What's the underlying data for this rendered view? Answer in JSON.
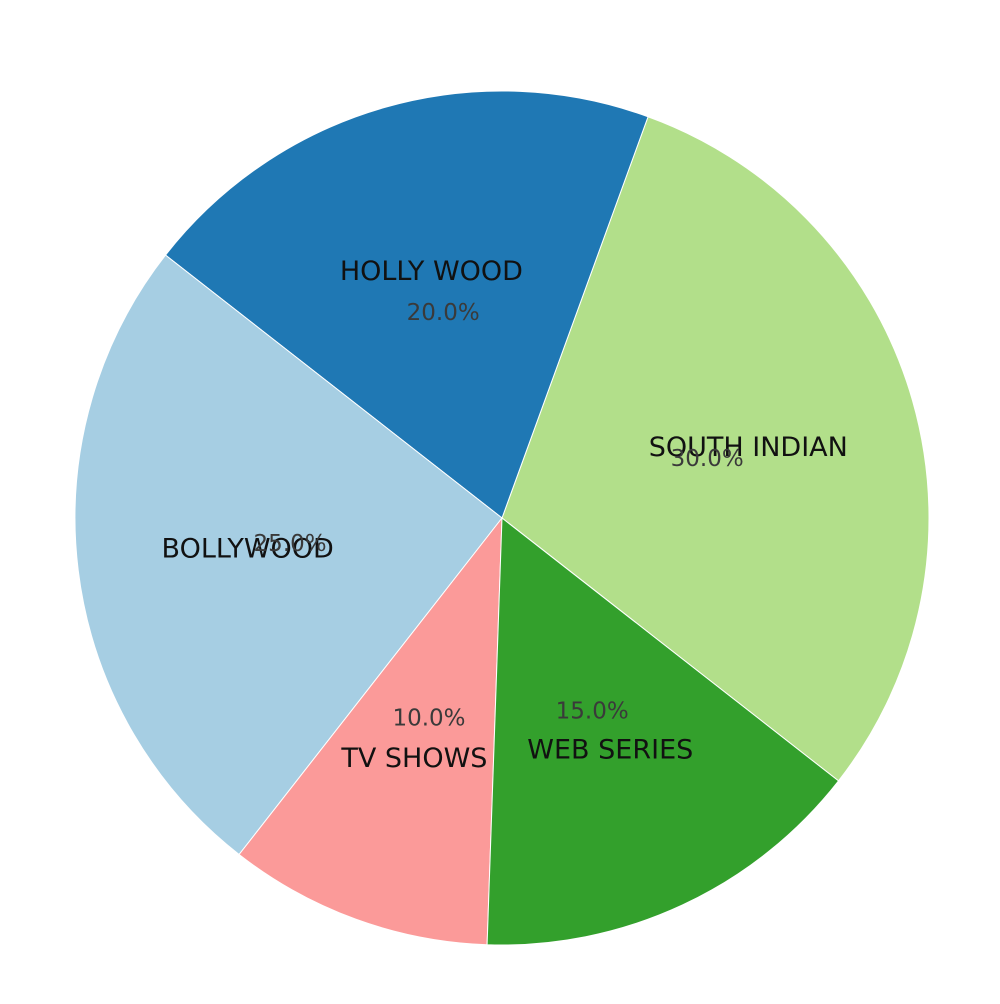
{
  "chart_data": {
    "type": "pie",
    "title": "",
    "slices": [
      {
        "label": "SOUTH INDIAN",
        "value": 30.0,
        "display": "30.0%",
        "color": "#b2df8a"
      },
      {
        "label": "HOLLY WOOD",
        "value": 20.0,
        "display": "20.0%",
        "color": "#1f78b4"
      },
      {
        "label": "BOLLYWOOD",
        "value": 25.0,
        "display": "25.0%",
        "color": "#a6cee3"
      },
      {
        "label": "TV SHOWS",
        "value": 10.0,
        "display": "10.0%",
        "color": "#fb9a99"
      },
      {
        "label": "WEB SERIES",
        "value": 15.0,
        "display": "15.0%",
        "color": "#33a02c"
      }
    ],
    "legend": "none",
    "grid": false
  }
}
